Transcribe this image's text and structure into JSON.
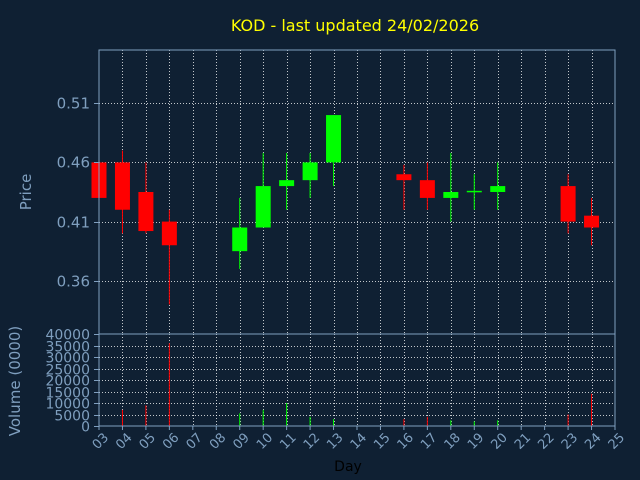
{
  "chart_data": {
    "type": "candlestick",
    "title": "KOD - last updated 24/02/2026",
    "xlabel": "Day",
    "price_panel": {
      "ylabel": "Price",
      "ylim": [
        0.315,
        0.555
      ],
      "yticks": [
        "0.51",
        "0.46",
        "0.41",
        "0.36"
      ],
      "ytick_values": [
        0.51,
        0.46,
        0.41,
        0.36
      ]
    },
    "volume_panel": {
      "ylabel": "Volume (0000)",
      "ylim": [
        0,
        40000
      ],
      "yticks": [
        "40000",
        "35000",
        "30000",
        "25000",
        "20000",
        "15000",
        "10000",
        "5000",
        "0"
      ],
      "ytick_values": [
        40000,
        35000,
        30000,
        25000,
        20000,
        15000,
        10000,
        5000,
        0
      ]
    },
    "x_ticks": [
      "03",
      "04",
      "05",
      "06",
      "07",
      "08",
      "09",
      "10",
      "11",
      "12",
      "13",
      "14",
      "15",
      "16",
      "17",
      "18",
      "19",
      "20",
      "21",
      "22",
      "23",
      "24",
      "25"
    ],
    "grid": true,
    "up_color": "#00ff00",
    "down_color": "#ff0000",
    "candles": [
      {
        "day": "03",
        "open": 0.46,
        "high": 0.465,
        "low": 0.42,
        "close": 0.43,
        "volume": 3000
      },
      {
        "day": "04",
        "open": 0.46,
        "high": 0.47,
        "low": 0.4,
        "close": 0.42,
        "volume": 7000
      },
      {
        "day": "05",
        "open": 0.435,
        "high": 0.46,
        "low": 0.4,
        "close": 0.402,
        "volume": 9000
      },
      {
        "day": "06",
        "open": 0.41,
        "high": 0.42,
        "low": 0.34,
        "close": 0.39,
        "volume": 36000
      },
      {
        "day": "09",
        "open": 0.385,
        "high": 0.43,
        "low": 0.37,
        "close": 0.405,
        "volume": 5500
      },
      {
        "day": "10",
        "open": 0.405,
        "high": 0.468,
        "low": 0.405,
        "close": 0.44,
        "volume": 7000
      },
      {
        "day": "11",
        "open": 0.44,
        "high": 0.468,
        "low": 0.42,
        "close": 0.445,
        "volume": 10000
      },
      {
        "day": "12",
        "open": 0.445,
        "high": 0.468,
        "low": 0.43,
        "close": 0.46,
        "volume": 4000
      },
      {
        "day": "13",
        "open": 0.46,
        "high": 0.5,
        "low": 0.44,
        "close": 0.5,
        "volume": 3000
      },
      {
        "day": "16",
        "open": 0.45,
        "high": 0.458,
        "low": 0.42,
        "close": 0.445,
        "volume": 3000
      },
      {
        "day": "17",
        "open": 0.445,
        "high": 0.46,
        "low": 0.42,
        "close": 0.43,
        "volume": 4000
      },
      {
        "day": "18",
        "open": 0.43,
        "high": 0.468,
        "low": 0.41,
        "close": 0.435,
        "volume": 2500
      },
      {
        "day": "19",
        "open": 0.435,
        "high": 0.45,
        "low": 0.42,
        "close": 0.436,
        "volume": 2000
      },
      {
        "day": "20",
        "open": 0.435,
        "high": 0.46,
        "low": 0.42,
        "close": 0.44,
        "volume": 2500
      },
      {
        "day": "23",
        "open": 0.44,
        "high": 0.45,
        "low": 0.4,
        "close": 0.41,
        "volume": 5000
      },
      {
        "day": "24",
        "open": 0.415,
        "high": 0.43,
        "low": 0.39,
        "close": 0.405,
        "volume": 14000
      }
    ]
  }
}
